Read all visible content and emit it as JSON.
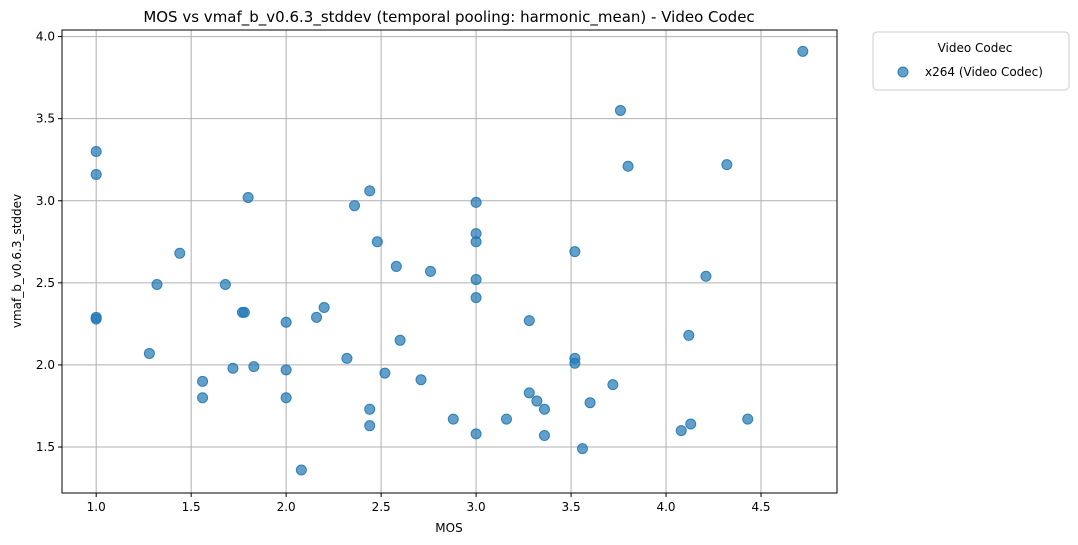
{
  "chart_data": {
    "type": "scatter",
    "title": "MOS vs vmaf_b_v0.6.3_stddev (temporal pooling: harmonic_mean) - Video Codec",
    "xlabel": "MOS",
    "ylabel": "vmaf_b_v0.6.3_stddev",
    "xlim": [
      0.82,
      4.9
    ],
    "ylim": [
      1.22,
      4.04
    ],
    "xticks": [
      "1.0",
      "1.5",
      "2.0",
      "2.5",
      "3.0",
      "3.5",
      "4.0",
      "4.5"
    ],
    "yticks": [
      "1.5",
      "2.0",
      "2.5",
      "3.0",
      "3.5",
      "4.0"
    ],
    "grid": true,
    "legend": {
      "title": "Video Codec",
      "placement": "outside-top-right"
    },
    "series": [
      {
        "name": "x264 (Video Codec)",
        "color": "#1f77b4",
        "points": [
          [
            1.0,
            3.3
          ],
          [
            1.0,
            3.16
          ],
          [
            1.0,
            2.29
          ],
          [
            1.0,
            2.28
          ],
          [
            1.28,
            2.07
          ],
          [
            1.32,
            2.49
          ],
          [
            1.44,
            2.68
          ],
          [
            1.56,
            1.9
          ],
          [
            1.56,
            1.8
          ],
          [
            1.68,
            2.49
          ],
          [
            1.72,
            1.98
          ],
          [
            1.77,
            2.32
          ],
          [
            1.78,
            2.32
          ],
          [
            1.8,
            3.02
          ],
          [
            1.83,
            1.99
          ],
          [
            2.0,
            2.26
          ],
          [
            2.0,
            1.97
          ],
          [
            2.0,
            1.8
          ],
          [
            2.08,
            1.36
          ],
          [
            2.16,
            2.29
          ],
          [
            2.2,
            2.35
          ],
          [
            2.32,
            2.04
          ],
          [
            2.36,
            2.97
          ],
          [
            2.44,
            3.06
          ],
          [
            2.44,
            1.73
          ],
          [
            2.44,
            1.63
          ],
          [
            2.48,
            2.75
          ],
          [
            2.52,
            1.95
          ],
          [
            2.58,
            2.6
          ],
          [
            2.6,
            2.15
          ],
          [
            2.71,
            1.91
          ],
          [
            2.76,
            2.57
          ],
          [
            2.88,
            1.67
          ],
          [
            3.0,
            2.99
          ],
          [
            3.0,
            2.8
          ],
          [
            3.0,
            2.75
          ],
          [
            3.0,
            2.52
          ],
          [
            3.0,
            2.41
          ],
          [
            3.0,
            1.58
          ],
          [
            3.16,
            1.67
          ],
          [
            3.28,
            2.27
          ],
          [
            3.28,
            1.83
          ],
          [
            3.32,
            1.78
          ],
          [
            3.36,
            1.73
          ],
          [
            3.36,
            1.57
          ],
          [
            3.52,
            2.69
          ],
          [
            3.52,
            2.04
          ],
          [
            3.52,
            2.01
          ],
          [
            3.56,
            1.49
          ],
          [
            3.6,
            1.77
          ],
          [
            3.72,
            1.88
          ],
          [
            3.76,
            3.55
          ],
          [
            3.8,
            3.21
          ],
          [
            4.08,
            1.6
          ],
          [
            4.12,
            2.18
          ],
          [
            4.13,
            1.64
          ],
          [
            4.21,
            2.54
          ],
          [
            4.32,
            3.22
          ],
          [
            4.43,
            1.67
          ],
          [
            4.72,
            3.91
          ]
        ]
      }
    ]
  }
}
